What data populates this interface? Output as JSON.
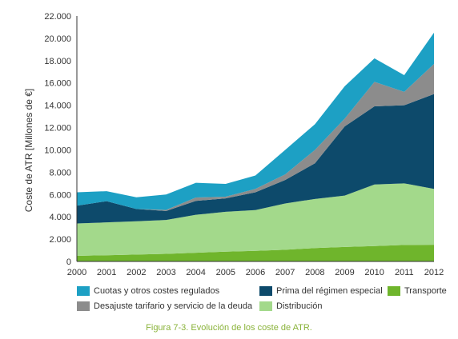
{
  "chart_data": {
    "type": "area",
    "stacked": true,
    "ylabel": "Coste de ATR [Millones de €]",
    "xlabel": "",
    "x": [
      "2000",
      "2001",
      "2002",
      "2003",
      "2004",
      "2005",
      "2006",
      "2007",
      "2008",
      "2009",
      "2010",
      "2011",
      "2012"
    ],
    "ylim": [
      0,
      22000
    ],
    "yticks": [
      0,
      2000,
      4000,
      6000,
      8000,
      10000,
      12000,
      14000,
      16000,
      18000,
      20000,
      22000
    ],
    "ytick_labels": [
      "0",
      "2.000",
      "4.000",
      "6.000",
      "8.000",
      "10.000",
      "12.000",
      "14.000",
      "16.000",
      "18.000",
      "20.000",
      "22.000"
    ],
    "grid": false,
    "legend_position": "bottom",
    "series": [
      {
        "name": "Transporte",
        "color": "#6fb52c",
        "values": [
          500,
          560,
          620,
          680,
          780,
          880,
          950,
          1050,
          1200,
          1300,
          1380,
          1480,
          1500
        ]
      },
      {
        "name": "Distribución",
        "color": "#a3d98b",
        "values": [
          2900,
          2940,
          2980,
          3040,
          3400,
          3570,
          3650,
          4150,
          4400,
          4600,
          5520,
          5520,
          5000
        ]
      },
      {
        "name": "Prima del régimen especial",
        "color": "#0d4a6b",
        "values": [
          1600,
          1900,
          1100,
          800,
          1250,
          1200,
          1600,
          2100,
          3200,
          6200,
          7000,
          7000,
          8500
        ]
      },
      {
        "name": "Desajuste tarifario y servicio de la deuda",
        "color": "#8c8c8c",
        "values": [
          0,
          0,
          0,
          100,
          300,
          150,
          300,
          500,
          1200,
          700,
          2200,
          1200,
          2700
        ]
      },
      {
        "name": "Cuotas y otros costes regulados",
        "color": "#1da0c4",
        "values": [
          1200,
          900,
          1050,
          1380,
          1320,
          1150,
          1200,
          2200,
          2300,
          2900,
          2100,
          1500,
          2800
        ]
      }
    ]
  },
  "legend": [
    [
      {
        "label": "Cuotas y otros costes regulados",
        "color": "#1da0c4"
      },
      {
        "label": "Prima del régimen especial",
        "color": "#0d4a6b"
      },
      {
        "label": "Transporte",
        "color": "#6fb52c"
      }
    ],
    [
      {
        "label": "Desajuste tarifario y servicio de la deuda",
        "color": "#8c8c8c"
      },
      {
        "label": "Distribución",
        "color": "#a3d98b"
      }
    ]
  ],
  "caption": "Figura 7-3. Evolución de los coste de ATR."
}
